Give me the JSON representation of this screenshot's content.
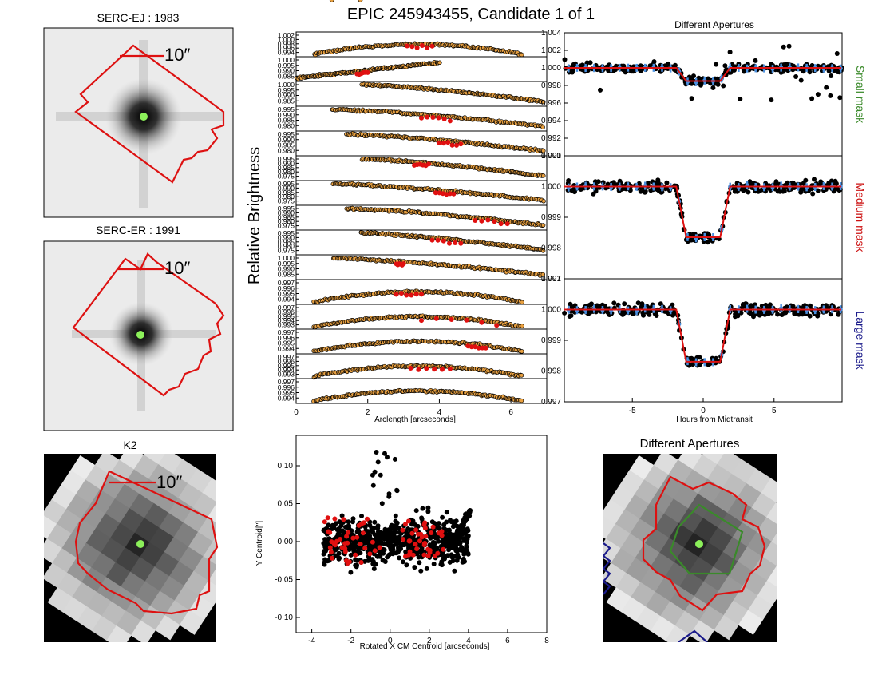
{
  "page_title": "EPIC 245943455, Candidate 1 of 1",
  "colors": {
    "aperture": "#dd1111",
    "small_mask": "#3a8a2a",
    "medium_mask": "#cc1111",
    "large_mask": "#1a1a8a",
    "star_marker": "#8cf05a",
    "orange_points": "#e8a040",
    "red_points": "#e01010",
    "binned": "#4a90e0"
  },
  "images": {
    "serc_ej": {
      "title": "SERC-EJ : 1983",
      "scale_label": "10″"
    },
    "serc_er": {
      "title": "SERC-ER : 1991",
      "scale_label": "10″"
    },
    "k2": {
      "title": "K2",
      "scale_label": "10″"
    },
    "apertures_image": {
      "title": "Different Apertures"
    }
  },
  "chart_data": [
    {
      "type": "scatter",
      "id": "arclength_stack",
      "title": "",
      "xlabel": "Arclength [arcseconds]",
      "ylabel": "Relative Brightness",
      "xlim": [
        0,
        7
      ],
      "x_ticks": [
        "0",
        "2",
        "4",
        "6"
      ],
      "panels": [
        {
          "ticks": [
            "1.002",
            "1.000",
            "0.998",
            "0.996",
            "0.994"
          ],
          "trend": "arch",
          "red_x": [
            3.1,
            3.8
          ]
        },
        {
          "ticks": [
            "1.000",
            "0.995",
            "0.990",
            "0.985"
          ],
          "trend": "rise",
          "red_x": [
            1.7,
            2.0
          ]
        },
        {
          "ticks": [
            "1.000",
            "0.995",
            "0.990",
            "0.985"
          ],
          "trend": "fall",
          "red_x": []
        },
        {
          "ticks": [
            "0.995",
            "0.990",
            "0.985",
            "0.980"
          ],
          "trend": "fall",
          "red_x": [
            3.5,
            4.3
          ]
        },
        {
          "ticks": [
            "0.995",
            "0.990",
            "0.985",
            "0.980"
          ],
          "trend": "fall",
          "red_x": [
            4.0,
            4.6
          ]
        },
        {
          "ticks": [
            "0.995",
            "0.990",
            "0.985",
            "0.980",
            "0.975"
          ],
          "trend": "fall",
          "red_x": [
            3.3,
            3.7
          ]
        },
        {
          "ticks": [
            "0.995",
            "0.990",
            "0.985",
            "0.980",
            "0.975"
          ],
          "trend": "fall",
          "red_x": [
            3.9,
            4.4
          ]
        },
        {
          "ticks": [
            "0.995",
            "0.990",
            "0.985",
            "0.980",
            "0.975"
          ],
          "trend": "fall",
          "red_x": [
            5.0,
            5.9
          ]
        },
        {
          "ticks": [
            "0.995",
            "0.990",
            "0.985",
            "0.980",
            "0.975"
          ],
          "trend": "fall",
          "red_x": [
            3.8,
            4.6
          ]
        },
        {
          "ticks": [
            "1.000",
            "0.995",
            "0.990",
            "0.985"
          ],
          "trend": "fall",
          "red_x": [
            2.8,
            3.0
          ]
        },
        {
          "ticks": [
            "0.997",
            "0.996",
            "0.995",
            "0.994"
          ],
          "trend": "arch",
          "red_x": [
            2.8,
            3.5
          ]
        },
        {
          "ticks": [
            "0.997",
            "0.996",
            "0.995",
            "0.994",
            "0.993"
          ],
          "trend": "arch",
          "red_x": [
            3.5,
            5.6
          ]
        },
        {
          "ticks": [
            "0.997",
            "0.996",
            "0.995",
            "0.994"
          ],
          "trend": "arch",
          "red_x": [
            4.8,
            5.3
          ]
        },
        {
          "ticks": [
            "0.997",
            "0.996",
            "0.995",
            "0.994",
            "0.993"
          ],
          "trend": "arch",
          "red_x": [
            3.2,
            4.3
          ]
        },
        {
          "ticks": [
            "0.997",
            "0.996",
            "0.995",
            "0.994"
          ],
          "trend": "arch",
          "red_x": []
        }
      ]
    },
    {
      "type": "scatter",
      "id": "different_apertures",
      "title": "Different Apertures",
      "xlabel": "Hours from Midtransit",
      "xlim": [
        -9.8,
        9.8
      ],
      "x_ticks": [
        "-5",
        "0",
        "5"
      ],
      "transit": {
        "t_ingress_start": -1.9,
        "t_flat_start": -1.2,
        "t_flat_end": 1.2,
        "t_egress_end": 1.9
      },
      "panels": [
        {
          "label": "Small mask",
          "ylim": [
            0.99,
            1.004
          ],
          "y_ticks": [
            "1.004",
            "1.002",
            "1.000",
            "0.998",
            "0.996",
            "0.994",
            "0.992",
            "0.990"
          ],
          "depth": 0.0015,
          "noise": 0.00045
        },
        {
          "label": "Medium mask",
          "ylim": [
            0.997,
            1.001
          ],
          "y_ticks": [
            "1.001",
            "1.000",
            "0.999",
            "0.998",
            "0.997"
          ],
          "depth": 0.00165,
          "noise": 0.00018
        },
        {
          "label": "Large mask",
          "ylim": [
            0.997,
            1.001
          ],
          "y_ticks": [
            "1.001",
            "1.000",
            "0.999",
            "0.998",
            "0.997"
          ],
          "depth": 0.0017,
          "noise": 0.00018
        }
      ]
    },
    {
      "type": "scatter",
      "id": "centroid",
      "title": "",
      "xlabel": "Rotated X CM Centroid [arcseconds]",
      "ylabel": "Y Centroid['']",
      "xlim": [
        -4.8,
        8
      ],
      "ylim": [
        -0.12,
        0.14
      ],
      "x_ticks": [
        "-4",
        "-2",
        "0",
        "2",
        "4",
        "6",
        "8"
      ],
      "y_ticks": [
        "0.10",
        "0.05",
        "0.00",
        "-0.05",
        "-0.10"
      ],
      "cloud": {
        "x_center": 0.3,
        "x_halfwidth": 3.7,
        "y_spread": 0.03
      },
      "red_groups": [
        {
          "x": [
            -3.5,
            -0.5
          ],
          "y": [
            -0.03,
            0.04
          ]
        },
        {
          "x": [
            0.5,
            2.8
          ],
          "y": [
            -0.02,
            0.035
          ]
        }
      ]
    }
  ]
}
